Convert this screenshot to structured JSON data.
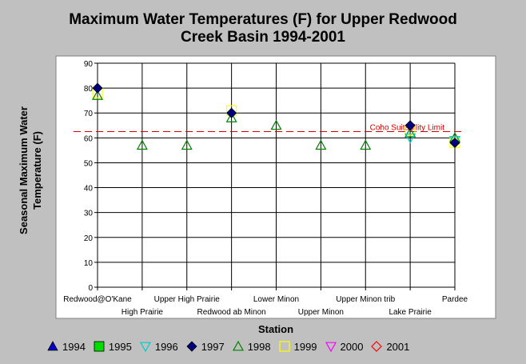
{
  "chart_data": {
    "type": "scatter",
    "title_line1": "Maximum Water Temperatures (F) for Upper Redwood",
    "title_line2": "Creek Basin 1994-2001",
    "xlabel": "Station",
    "ylabel_line1": "Seasonal Maximum Water",
    "ylabel_line2": "Temperature  (F)",
    "ylim": [
      0,
      90
    ],
    "yticks": [
      0,
      10,
      20,
      30,
      40,
      50,
      60,
      70,
      80,
      90
    ],
    "categories": [
      "Redwood@O'Kane",
      "High Prairie",
      "Upper High Prairie",
      "Redwood ab Minon",
      "Lower Minon",
      "Upper Minon",
      "Upper Minon trib",
      "Lake Prairie",
      "Pardee"
    ],
    "grid": true,
    "legend_position": "bottom",
    "series": [
      {
        "name": "1994",
        "marker": "triangle-up-filled",
        "color": "#0000cc",
        "values": [
          null,
          null,
          null,
          null,
          null,
          null,
          null,
          null,
          null
        ]
      },
      {
        "name": "1995",
        "marker": "square-filled",
        "color": "#00dd00",
        "values": [
          null,
          null,
          null,
          null,
          null,
          null,
          null,
          null,
          null
        ]
      },
      {
        "name": "1996",
        "marker": "triangle-down-open",
        "color": "#00cccc",
        "values": [
          null,
          null,
          null,
          null,
          null,
          null,
          null,
          60,
          59
        ]
      },
      {
        "name": "1997",
        "marker": "diamond-filled",
        "color": "#000080",
        "values": [
          80,
          null,
          null,
          70,
          null,
          null,
          null,
          65,
          58
        ]
      },
      {
        "name": "1998",
        "marker": "triangle-up-open",
        "color": "#008000",
        "values": [
          77,
          57,
          57,
          68,
          65,
          57,
          57,
          62,
          60
        ]
      },
      {
        "name": "1999",
        "marker": "square-open",
        "color": "#ffff00",
        "values": [
          78,
          null,
          null,
          71,
          null,
          null,
          null,
          63,
          58
        ]
      },
      {
        "name": "2000",
        "marker": "triangle-down-open",
        "color": "#ff00ff",
        "values": [
          null,
          null,
          null,
          null,
          null,
          null,
          null,
          null,
          null
        ]
      },
      {
        "name": "2001",
        "marker": "diamond-open",
        "color": "#ff0000",
        "values": [
          null,
          null,
          null,
          null,
          null,
          null,
          null,
          null,
          null
        ]
      }
    ],
    "reference_line": {
      "label": "Coho Suitability Limit",
      "value": 62.5,
      "color": "#cc0000"
    }
  }
}
